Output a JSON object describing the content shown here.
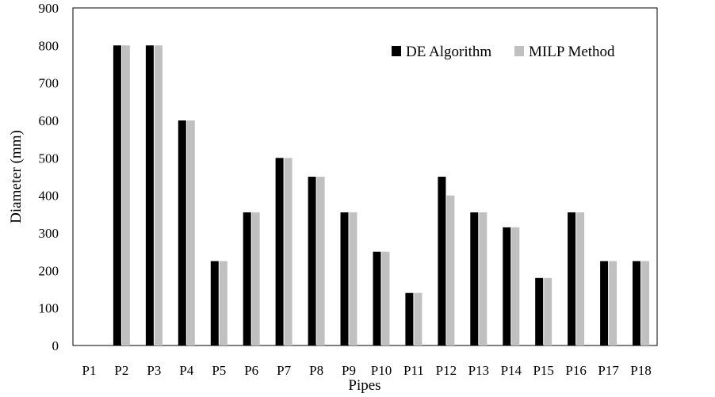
{
  "chart_data": {
    "type": "bar",
    "categories": [
      "P1",
      "P2",
      "P3",
      "P4",
      "P5",
      "P6",
      "P7",
      "P8",
      "P9",
      "P10",
      "P11",
      "P12",
      "P13",
      "P14",
      "P15",
      "P16",
      "P17",
      "P18"
    ],
    "series": [
      {
        "name": "DE Algorithm",
        "color": "#000000",
        "values": [
          0,
          800,
          800,
          600,
          225,
          355,
          500,
          450,
          355,
          250,
          140,
          450,
          355,
          315,
          180,
          355,
          225,
          225
        ]
      },
      {
        "name": "MILP Method",
        "color": "#c0c0c0",
        "values": [
          0,
          800,
          800,
          600,
          225,
          355,
          500,
          450,
          355,
          250,
          140,
          400,
          355,
          315,
          180,
          355,
          225,
          225
        ]
      }
    ],
    "xlabel": "Pipes",
    "ylabel": "Diameter (mm)",
    "ylim": [
      0,
      900
    ],
    "yticks": [
      0,
      100,
      200,
      300,
      400,
      500,
      600,
      700,
      800,
      900
    ],
    "grid": false,
    "legend_position": "top-right"
  }
}
